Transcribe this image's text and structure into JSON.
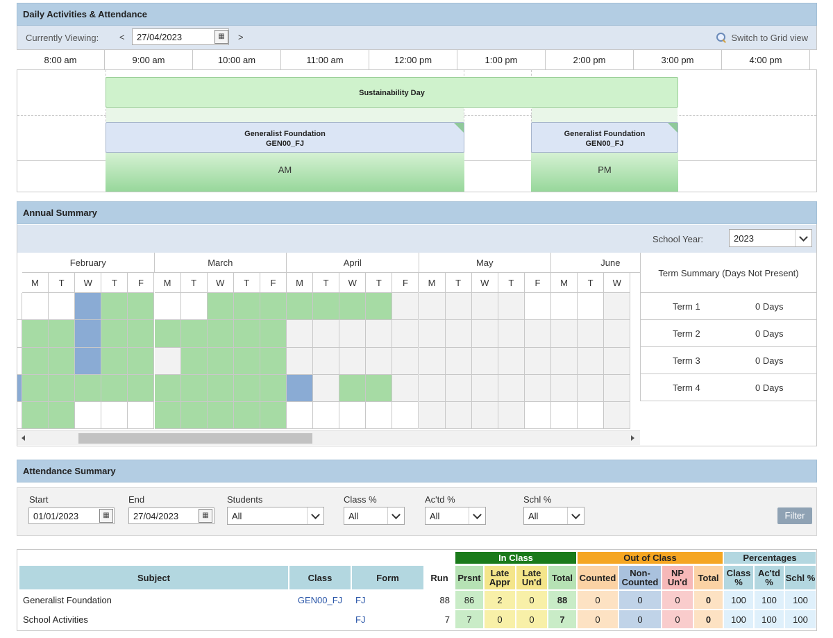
{
  "daily": {
    "title": "Daily Activities & Attendance",
    "viewing_label": "Currently Viewing:",
    "prev": "<",
    "next": ">",
    "date": "27/04/2023",
    "switch_label": "Switch to Grid view",
    "times": [
      "8:00 am",
      "9:00 am",
      "10:00 am",
      "11:00 am",
      "12:00 pm",
      "1:00 pm",
      "2:00 pm",
      "3:00 pm",
      "4:00 pm"
    ],
    "event_all_day": "Sustainability Day",
    "class_am": {
      "name": "Generalist Foundation",
      "code": "GEN00_FJ"
    },
    "class_pm": {
      "name": "Generalist Foundation",
      "code": "GEN00_FJ"
    },
    "session_am": "AM",
    "session_pm": "PM"
  },
  "annual": {
    "title": "Annual Summary",
    "year_label": "School Year:",
    "year_value": "2023",
    "months": [
      "February",
      "March",
      "April",
      "May",
      "June"
    ],
    "dow": [
      "M",
      "T",
      "W",
      "T",
      "F"
    ],
    "term_head": "Term Summary (Days Not Present)",
    "terms": [
      {
        "name": "Term 1",
        "value": "0 Days"
      },
      {
        "name": "Term 2",
        "value": "0 Days"
      },
      {
        "name": "Term 3",
        "value": "0 Days"
      },
      {
        "name": "Term 4",
        "value": "0 Days"
      }
    ]
  },
  "attendance": {
    "title": "Attendance Summary",
    "start_label": "Start",
    "start_value": "01/01/2023",
    "end_label": "End",
    "end_value": "27/04/2023",
    "students_label": "Students",
    "students_value": "All",
    "class_pct_label": "Class %",
    "class_pct_value": "All",
    "actd_pct_label": "Ac'td %",
    "actd_pct_value": "All",
    "schl_pct_label": "Schl %",
    "schl_pct_value": "All",
    "filter_label": "Filter",
    "groups": {
      "in_class": "In Class",
      "out_class": "Out of Class",
      "percentages": "Percentages"
    },
    "headers": {
      "subject": "Subject",
      "class": "Class",
      "form": "Form",
      "run": "Run",
      "prsnt": "Prsnt",
      "late_appr": "Late Appr",
      "late_und": "Late Un'd",
      "total_in": "Total",
      "counted": "Counted",
      "non_counted": "Non-Counted",
      "np_und": "NP Un'd",
      "total_out": "Total",
      "class_pct": "Class %",
      "actd_pct": "Ac'td %",
      "schl_pct": "Schl %"
    },
    "rows": [
      {
        "subject": "Generalist Foundation",
        "class": "GEN00_FJ",
        "form": "FJ",
        "run": "88",
        "prsnt": "86",
        "late_appr": "2",
        "late_und": "0",
        "total_in": "88",
        "counted": "0",
        "non_counted": "0",
        "np_und": "0",
        "total_out": "0",
        "class_pct": "100",
        "actd_pct": "100",
        "schl_pct": "100"
      },
      {
        "subject": "School Activities",
        "class": "",
        "form": "FJ",
        "run": "7",
        "prsnt": "7",
        "late_appr": "0",
        "late_und": "0",
        "total_in": "7",
        "counted": "0",
        "non_counted": "0",
        "np_und": "0",
        "total_out": "0",
        "class_pct": "100",
        "actd_pct": "100",
        "schl_pct": "100"
      }
    ]
  },
  "colors": {
    "header_bg": "#b3cde3",
    "present_green": "#a6dba4",
    "absent_blue": "#8aabd4",
    "in_class_header": "#1a7a1a",
    "out_class_header": "#f5a623",
    "percent_header": "#b3d7e0"
  }
}
